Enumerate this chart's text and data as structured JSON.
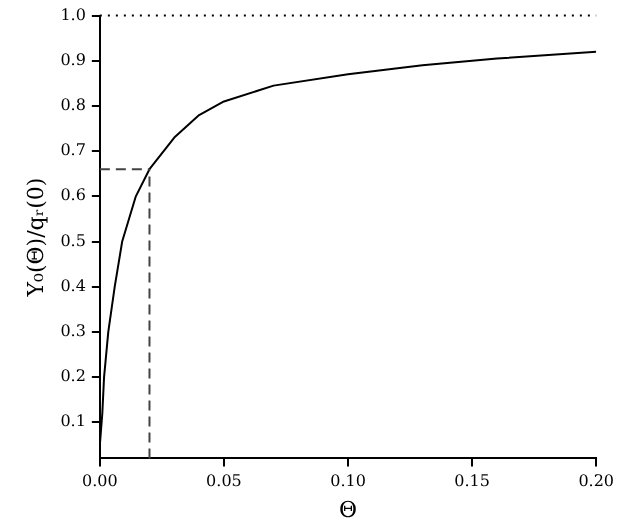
{
  "chart_data": {
    "type": "line",
    "xlabel": "Θ",
    "ylabel": "Y₀(Θ)/qᵣ(0)",
    "x": [
      0,
      0.001,
      0.0017,
      0.0034,
      0.006,
      0.009,
      0.0145,
      0.02,
      0.03,
      0.04,
      0.05,
      0.07,
      0.1,
      0.13,
      0.16,
      0.2
    ],
    "series": [
      {
        "color": "#000000",
        "values": [
          0.05,
          0.12,
          0.2,
          0.3,
          0.4,
          0.5,
          0.6,
          0.66,
          0.73,
          0.78,
          0.81,
          0.845,
          0.87,
          0.89,
          0.905,
          0.92
        ]
      }
    ],
    "xlim": [
      0,
      0.2
    ],
    "xticks": [
      {
        "value": 0,
        "label": "0.00"
      },
      {
        "value": 0.05,
        "label": "0.05"
      },
      {
        "value": 0.1,
        "label": "0.10"
      },
      {
        "value": 0.15,
        "label": "0.15"
      },
      {
        "value": 0.2,
        "label": "0.20"
      }
    ],
    "ylim": [
      0.02,
      1
    ],
    "yticks": [
      0.1,
      0.2,
      0.3,
      0.4,
      0.5,
      0.6,
      0.7,
      0.8,
      0.9,
      {
        "value": 1,
        "label": "1.0"
      }
    ],
    "ref_lines": [
      {
        "axis": "y",
        "value": 1,
        "line_style": "dotted",
        "color": "#000000"
      },
      {
        "axis": "x",
        "value": 0.02,
        "line_style": "dashed",
        "color": "#444444"
      },
      {
        "axis": "y",
        "value": 0.66,
        "line_style": "dashed",
        "color": "#444444"
      }
    ],
    "grid": false,
    "legend": false,
    "marker": "none",
    "line_style": "solid"
  }
}
